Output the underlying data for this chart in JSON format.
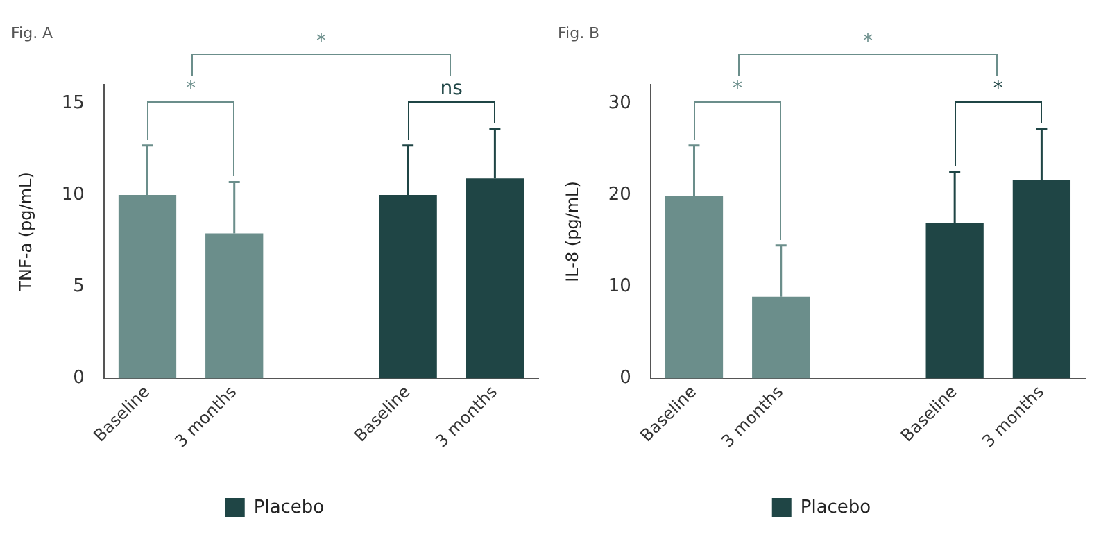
{
  "chart_data": [
    {
      "type": "bar",
      "title": "Fig. A",
      "ylabel": "TNF-a (pg/mL)",
      "categories": [
        "Baseline",
        "3 months",
        null,
        "Baseline",
        "3 months"
      ],
      "series": [
        {
          "color": "#6b8e8b",
          "values": [
            10,
            7.9,
            null,
            null,
            null
          ],
          "errors": [
            [
              10,
              12.7
            ],
            [
              7.9,
              10.7
            ],
            null,
            null,
            null
          ]
        },
        {
          "name": "Placebo",
          "color": "#1f4545",
          "values": [
            null,
            null,
            null,
            10,
            10.9
          ],
          "errors": [
            null,
            null,
            null,
            [
              10,
              12.7
            ],
            [
              10.9,
              13.6
            ]
          ]
        }
      ],
      "ylim": [
        0,
        16
      ],
      "yticks": [
        0,
        5,
        10,
        15
      ],
      "grid": false,
      "legend": "bottom",
      "annotations": [
        "*",
        "*",
        "ns"
      ]
    },
    {
      "type": "bar",
      "title": "Fig. B",
      "ylabel": "IL-8 (pg/mL)",
      "categories": [
        "Baseline",
        "3 months",
        null,
        "Baseline",
        "3 months"
      ],
      "series": [
        {
          "color": "#6b8e8b",
          "values": [
            19.9,
            8.9,
            null,
            null,
            null
          ],
          "errors": [
            [
              19.9,
              25.4
            ],
            [
              8.9,
              14.5
            ],
            null,
            null,
            null
          ]
        },
        {
          "name": "Placebo",
          "color": "#1f4545",
          "values": [
            null,
            null,
            null,
            16.9,
            21.6
          ],
          "errors": [
            null,
            null,
            null,
            [
              16.9,
              22.5
            ],
            [
              21.6,
              27.2
            ]
          ]
        }
      ],
      "ylim": [
        0,
        32
      ],
      "yticks": [
        0,
        10,
        20,
        30
      ],
      "grid": false,
      "legend": "bottom",
      "annotations": [
        "*",
        "*",
        "*"
      ]
    }
  ]
}
